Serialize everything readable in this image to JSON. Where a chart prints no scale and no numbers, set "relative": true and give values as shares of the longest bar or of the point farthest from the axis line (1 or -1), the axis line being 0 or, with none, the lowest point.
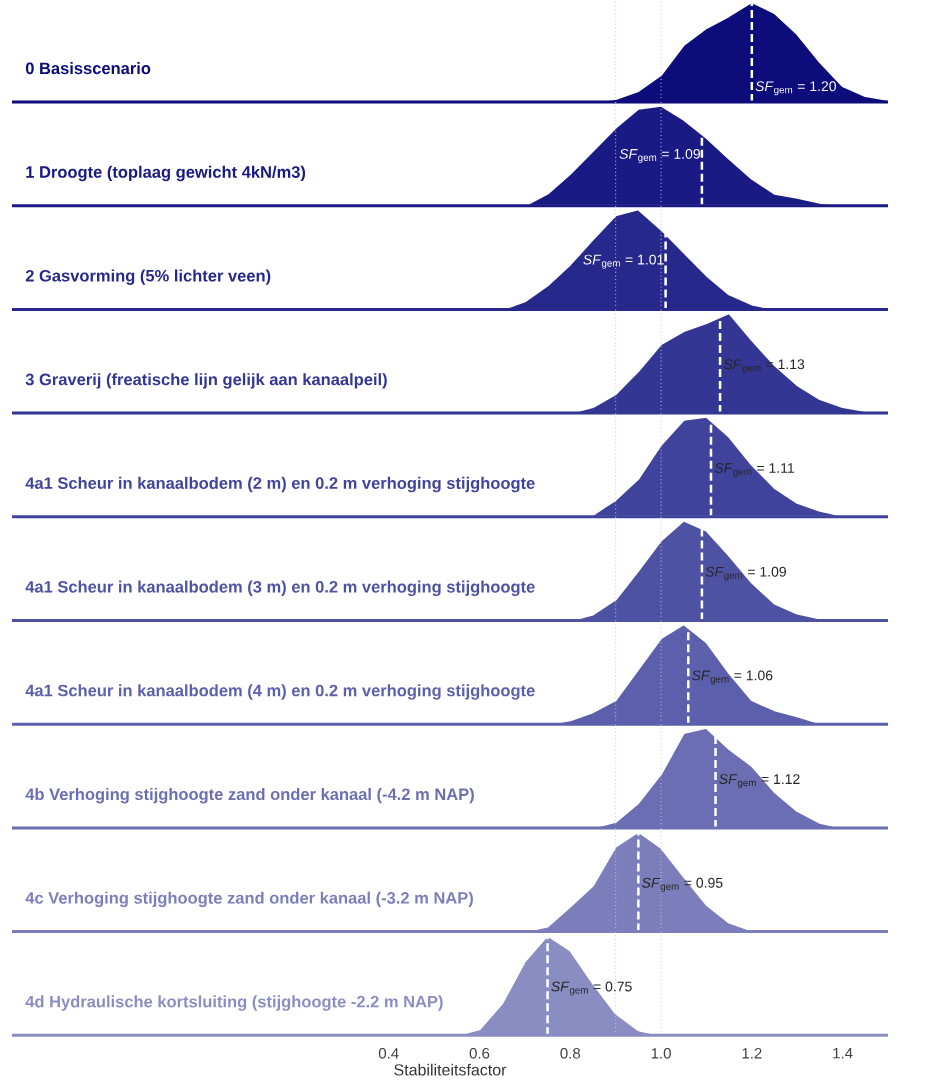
{
  "chart_data": [
    {
      "type": "area",
      "title": "0 Basisscenario",
      "relative": true,
      "color": "#0c0c7a",
      "xlim": [
        -0.43,
        1.5
      ],
      "x": [
        0.85,
        0.9,
        0.95,
        1.0,
        1.05,
        1.1,
        1.15,
        1.2,
        1.25,
        1.3,
        1.35,
        1.4,
        1.45,
        1.5
      ],
      "values": [
        0,
        0.03,
        0.11,
        0.27,
        0.57,
        0.74,
        0.86,
        1.0,
        0.89,
        0.68,
        0.4,
        0.16,
        0.06,
        0.02
      ],
      "ref_lines": [
        {
          "axis": "x",
          "value": 0.9,
          "color": "#c8c8d0",
          "line_style": "dotted"
        },
        {
          "axis": "x",
          "value": 1.0,
          "color": "#c8c8d0",
          "line_style": "dotted"
        },
        {
          "axis": "x",
          "value": 1.2,
          "label": "*SF*$_{gem}$ = 1.20",
          "color": "#ffffff",
          "line_style": "dashed"
        }
      ]
    },
    {
      "type": "area",
      "title": "1 Droogte (toplaag gewicht 4kN/m3)",
      "relative": true,
      "color": "#1a1a84",
      "xlim": [
        -0.43,
        1.5
      ],
      "x": [
        0.7,
        0.75,
        0.8,
        0.85,
        0.9,
        0.95,
        1.0,
        1.05,
        1.1,
        1.15,
        1.2,
        1.25,
        1.3,
        1.35,
        1.4
      ],
      "values": [
        0,
        0.12,
        0.32,
        0.55,
        0.78,
        0.97,
        1.0,
        0.86,
        0.68,
        0.47,
        0.27,
        0.12,
        0.08,
        0.03,
        0
      ],
      "ref_lines": [
        {
          "axis": "x",
          "value": 0.9,
          "color": "#c8c8d0",
          "line_style": "dotted"
        },
        {
          "axis": "x",
          "value": 1.0,
          "color": "#c8c8d0",
          "line_style": "dotted"
        },
        {
          "axis": "x",
          "value": 1.09,
          "label": "*SF*$_{gem}$ = 1.09",
          "color": "#ffffff",
          "line_style": "dashed"
        }
      ]
    },
    {
      "type": "area",
      "title": "2 Gasvorming (5% lichter veen)",
      "relative": true,
      "color": "#26288c",
      "xlim": [
        -0.43,
        1.5
      ],
      "x": [
        0.65,
        0.7,
        0.75,
        0.8,
        0.85,
        0.9,
        0.95,
        1.0,
        1.05,
        1.1,
        1.15,
        1.2,
        1.25
      ],
      "values": [
        0,
        0.08,
        0.24,
        0.45,
        0.7,
        0.94,
        1.0,
        0.8,
        0.57,
        0.34,
        0.15,
        0.05,
        0
      ],
      "ref_lines": [
        {
          "axis": "x",
          "value": 0.9,
          "color": "#c8c8d0",
          "line_style": "dotted"
        },
        {
          "axis": "x",
          "value": 1.0,
          "color": "#c8c8d0",
          "line_style": "dotted"
        },
        {
          "axis": "x",
          "value": 1.01,
          "label": "*SF*$_{gem}$ = 1.01",
          "color": "#ffffff",
          "line_style": "dashed"
        }
      ]
    },
    {
      "type": "area",
      "title": "3 Graverij (freatische lijn gelijk aan kanaalpeil)",
      "relative": true,
      "color": "#333693",
      "xlim": [
        -0.43,
        1.5
      ],
      "x": [
        0.8,
        0.85,
        0.9,
        0.95,
        1.0,
        1.05,
        1.1,
        1.15,
        1.2,
        1.25,
        1.3,
        1.35,
        1.4,
        1.45,
        1.5
      ],
      "values": [
        0,
        0.06,
        0.19,
        0.42,
        0.69,
        0.82,
        0.9,
        1.0,
        0.73,
        0.48,
        0.28,
        0.14,
        0.06,
        0.02,
        0.01
      ],
      "ref_lines": [
        {
          "axis": "x",
          "value": 0.9,
          "color": "#c8c8d0",
          "line_style": "dotted"
        },
        {
          "axis": "x",
          "value": 1.0,
          "color": "#c8c8d0",
          "line_style": "dotted"
        },
        {
          "axis": "x",
          "value": 1.13,
          "label": "*SF*$_{gem}$ = 1.13",
          "color": "#ffffff",
          "line_style": "dashed"
        }
      ]
    },
    {
      "type": "area",
      "title": "4a1 Scheur in kanaalbodem (2 m) en 0.2 m verhoging stijghoogte",
      "relative": true,
      "color": "#40439b",
      "xlim": [
        -0.43,
        1.5
      ],
      "x": [
        0.85,
        0.9,
        0.95,
        1.0,
        1.05,
        1.1,
        1.15,
        1.2,
        1.25,
        1.3,
        1.35,
        1.4
      ],
      "values": [
        0.02,
        0.17,
        0.38,
        0.72,
        0.97,
        1.0,
        0.8,
        0.52,
        0.29,
        0.14,
        0.06,
        0.01
      ],
      "ref_lines": [
        {
          "axis": "x",
          "value": 0.9,
          "color": "#c8c8d0",
          "line_style": "dotted"
        },
        {
          "axis": "x",
          "value": 1.0,
          "color": "#c8c8d0",
          "line_style": "dotted"
        },
        {
          "axis": "x",
          "value": 1.11,
          "label": "*SF*$_{gem}$ = 1.11",
          "color": "#ffffff",
          "line_style": "dashed"
        }
      ]
    },
    {
      "type": "area",
      "title": "4a1 Scheur in kanaalbodem (3 m) en 0.2 m verhoging stijghoogte",
      "relative": true,
      "color": "#4e52a3",
      "xlim": [
        -0.43,
        1.5
      ],
      "x": [
        0.8,
        0.85,
        0.9,
        0.95,
        1.0,
        1.05,
        1.1,
        1.15,
        1.2,
        1.25,
        1.3,
        1.35,
        1.4
      ],
      "values": [
        0,
        0.06,
        0.21,
        0.5,
        0.8,
        1.0,
        0.9,
        0.65,
        0.38,
        0.17,
        0.07,
        0.02,
        0
      ],
      "ref_lines": [
        {
          "axis": "x",
          "value": 0.9,
          "color": "#c8c8d0",
          "line_style": "dotted"
        },
        {
          "axis": "x",
          "value": 1.0,
          "color": "#c8c8d0",
          "line_style": "dotted"
        },
        {
          "axis": "x",
          "value": 1.09,
          "label": "*SF*$_{gem}$ = 1.09",
          "color": "#ffffff",
          "line_style": "dashed"
        }
      ]
    },
    {
      "type": "area",
      "title": "4a1 Scheur in kanaalbodem (4 m) en 0.2 m verhoging stijghoogte",
      "relative": true,
      "color": "#5c5fab",
      "xlim": [
        -0.43,
        1.5
      ],
      "x": [
        0.75,
        0.8,
        0.85,
        0.9,
        0.95,
        1.0,
        1.05,
        1.1,
        1.15,
        1.2,
        1.25,
        1.3,
        1.35
      ],
      "values": [
        0,
        0.04,
        0.12,
        0.24,
        0.55,
        0.86,
        1.0,
        0.82,
        0.51,
        0.24,
        0.14,
        0.08,
        0.01
      ],
      "ref_lines": [
        {
          "axis": "x",
          "value": 0.9,
          "color": "#c8c8d0",
          "line_style": "dotted"
        },
        {
          "axis": "x",
          "value": 1.0,
          "color": "#c8c8d0",
          "line_style": "dotted"
        },
        {
          "axis": "x",
          "value": 1.06,
          "label": "*SF*$_{gem}$ = 1.06",
          "color": "#ffffff",
          "line_style": "dashed"
        }
      ]
    },
    {
      "type": "area",
      "title": "4b Verhoging stijghoogte zand onder kanaal (-4.2 m NAP)",
      "relative": true,
      "color": "#6b6eb2",
      "xlim": [
        -0.43,
        1.5
      ],
      "x": [
        0.85,
        0.9,
        0.95,
        1.0,
        1.05,
        1.1,
        1.15,
        1.2,
        1.25,
        1.3,
        1.35,
        1.4
      ],
      "values": [
        0,
        0.06,
        0.25,
        0.54,
        0.95,
        1.0,
        0.79,
        0.62,
        0.36,
        0.17,
        0.05,
        0
      ],
      "ref_lines": [
        {
          "axis": "x",
          "value": 0.9,
          "color": "#c8c8d0",
          "line_style": "dotted"
        },
        {
          "axis": "x",
          "value": 1.0,
          "color": "#c8c8d0",
          "line_style": "dotted"
        },
        {
          "axis": "x",
          "value": 1.12,
          "label": "*SF*$_{gem}$ = 1.12",
          "color": "#ffffff",
          "line_style": "dashed"
        }
      ]
    },
    {
      "type": "area",
      "title": "4c Verhoging stijghoogte zand onder kanaal (-3.2 m NAP)",
      "relative": true,
      "color": "#7b7eba",
      "xlim": [
        -0.43,
        1.5
      ],
      "x": [
        0.7,
        0.75,
        0.8,
        0.85,
        0.9,
        0.95,
        1.0,
        1.05,
        1.1,
        1.15,
        1.2
      ],
      "values": [
        0,
        0.05,
        0.25,
        0.46,
        0.85,
        1.0,
        0.84,
        0.55,
        0.27,
        0.09,
        0.01
      ],
      "ref_lines": [
        {
          "axis": "x",
          "value": 0.9,
          "color": "#c8c8d0",
          "line_style": "dotted"
        },
        {
          "axis": "x",
          "value": 1.0,
          "color": "#c8c8d0",
          "line_style": "dotted"
        },
        {
          "axis": "x",
          "value": 0.95,
          "label": "*SF*$_{gem}$ = 0.95",
          "color": "#ffffff",
          "line_style": "dashed"
        }
      ]
    },
    {
      "type": "area",
      "title": "4d Hydraulische kortsluiting (stijghoogte -2.2 m NAP)",
      "relative": true,
      "color": "#8a8dc2",
      "xlim": [
        -0.43,
        1.5
      ],
      "xticks": [
        0.4,
        0.6,
        0.8,
        {
          "value": 1.0,
          "label": "1.0"
        },
        1.2,
        1.4
      ],
      "tick_labels": "x",
      "xlabel": "Stabiliteitsfactor",
      "x": [
        0.55,
        0.6,
        0.65,
        0.7,
        0.75,
        0.8,
        0.85,
        0.9,
        0.95,
        1.0
      ],
      "values": [
        0,
        0.06,
        0.32,
        0.74,
        1.0,
        0.85,
        0.52,
        0.22,
        0.05,
        0
      ],
      "ref_lines": [
        {
          "axis": "x",
          "value": 0.9,
          "color": "#c8c8d0",
          "line_style": "dotted"
        },
        {
          "axis": "x",
          "value": 1.0,
          "color": "#c8c8d0",
          "line_style": "dotted"
        },
        {
          "axis": "x",
          "value": 0.75,
          "label": "*SF*$_{gem}$ = 0.75",
          "color": "#ffffff",
          "line_style": "dashed"
        }
      ]
    }
  ]
}
